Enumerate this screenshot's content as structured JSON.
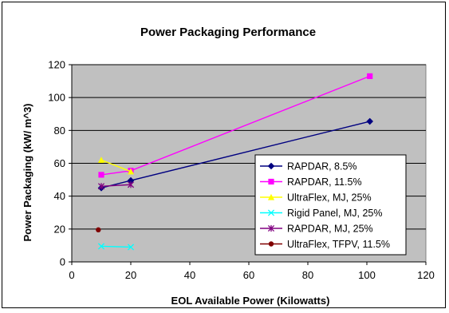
{
  "chart_data": {
    "type": "line",
    "title": "Power Packaging Performance",
    "xlabel": "EOL Available Power (Kilowatts)",
    "ylabel": "Power Packaging (kW/ m^3)",
    "xlim": [
      0,
      120
    ],
    "ylim": [
      0,
      120
    ],
    "xticks": [
      0,
      20,
      40,
      60,
      80,
      100,
      120
    ],
    "yticks": [
      0,
      20,
      40,
      60,
      80,
      100,
      120
    ],
    "grid": "horizontal",
    "plot_background": "#c0c0c0",
    "legend_placement": "right",
    "series": [
      {
        "name": "RAPDAR, 8.5%",
        "color": "#000080",
        "marker": "diamond",
        "x": [
          10,
          20,
          101
        ],
        "y": [
          45,
          49.5,
          85.5
        ]
      },
      {
        "name": "RAPDAR, 11.5%",
        "color": "#ff00ff",
        "marker": "square",
        "x": [
          10,
          20,
          101
        ],
        "y": [
          53,
          55.5,
          113
        ]
      },
      {
        "name": "UltraFlex, MJ, 25%",
        "color": "#ffff00",
        "marker": "triangle",
        "x": [
          10,
          20
        ],
        "y": [
          62,
          55
        ]
      },
      {
        "name": "Rigid Panel, MJ, 25%",
        "color": "#00ffff",
        "marker": "x",
        "x": [
          10,
          20
        ],
        "y": [
          9.5,
          9
        ]
      },
      {
        "name": "RAPDAR, MJ, 25%",
        "color": "#800080",
        "marker": "star",
        "x": [
          10,
          20
        ],
        "y": [
          46,
          47
        ]
      },
      {
        "name": "UltraFlex, TFPV, 11.5%",
        "color": "#800000",
        "marker": "circle",
        "x": [
          9
        ],
        "y": [
          19.5
        ]
      }
    ]
  }
}
